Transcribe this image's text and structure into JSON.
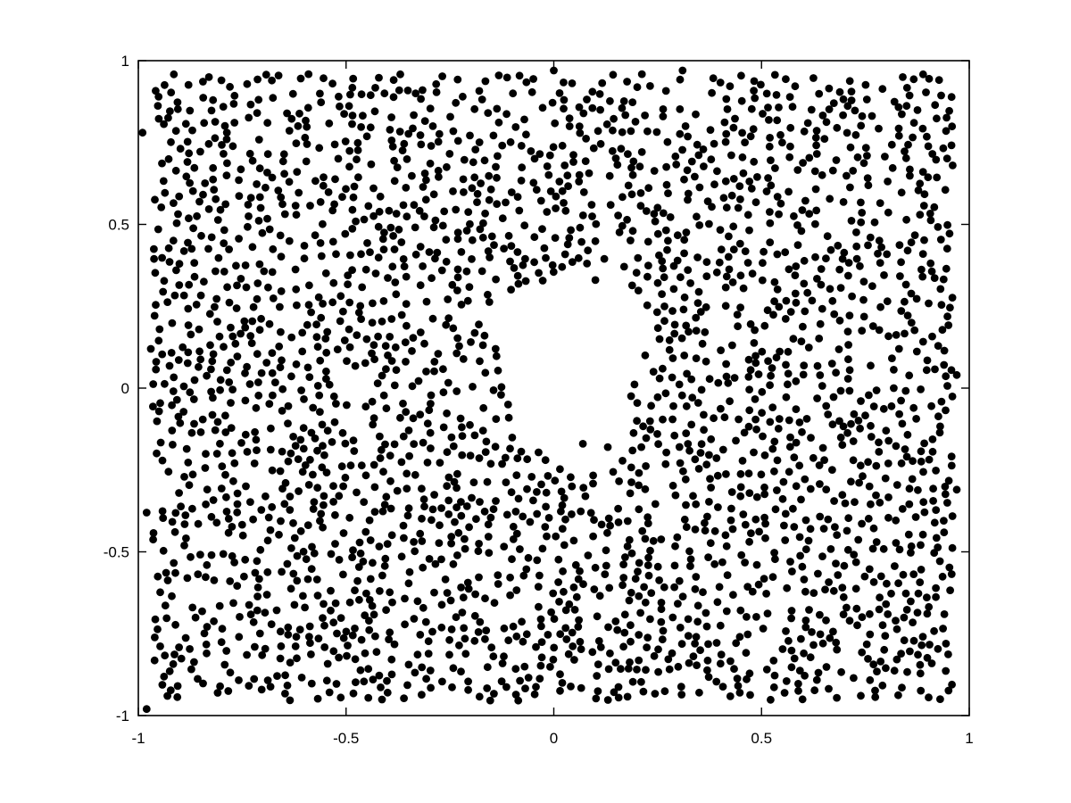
{
  "chart_data": {
    "type": "scatter",
    "title": "",
    "xlabel": "",
    "ylabel": "",
    "xlim": [
      -1,
      1
    ],
    "ylim": [
      -1,
      1
    ],
    "xticks": [
      -1,
      -0.5,
      0,
      0.5,
      1
    ],
    "yticks": [
      -1,
      -0.5,
      0,
      0.5,
      1
    ],
    "xtick_labels": [
      "-1",
      "-0.5",
      "0",
      "0.5",
      "1"
    ],
    "ytick_labels": [
      "-1",
      "-0.5",
      "0",
      "0.5",
      "1"
    ],
    "grid": false,
    "legend": "none",
    "marker": "filled-circle",
    "color": "#000000",
    "point_count": 2600,
    "empty_region": {
      "shape": "irregular blob",
      "x_range": [
        -0.15,
        0.23
      ],
      "y_range": [
        -0.22,
        0.4
      ]
    },
    "series": [
      {
        "points": [
          [
            -0.98,
            -0.98
          ],
          [
            -0.83,
            0.95
          ],
          [
            -0.8,
            0.94
          ],
          [
            0.0,
            0.97
          ],
          [
            0.31,
            0.97
          ],
          [
            0.84,
            0.95
          ],
          [
            -0.99,
            0.78
          ],
          [
            0.96,
            0.68
          ],
          [
            -0.97,
            0.12
          ],
          [
            0.97,
            0.04
          ],
          [
            -0.98,
            -0.38
          ],
          [
            0.97,
            -0.31
          ],
          [
            -0.93,
            -0.94
          ],
          [
            0.93,
            -0.95
          ],
          [
            -0.4,
            -0.93
          ],
          [
            0.35,
            -0.93
          ],
          [
            -0.14,
            0.12
          ],
          [
            -0.11,
            -0.05
          ],
          [
            0.02,
            0.37
          ],
          [
            0.1,
            0.33
          ],
          [
            0.22,
            0.1
          ],
          [
            0.24,
            0.05
          ],
          [
            0.2,
            -0.1
          ],
          [
            0.07,
            -0.17
          ],
          [
            0.13,
            -0.18
          ],
          [
            -0.02,
            -0.22
          ]
        ]
      }
    ]
  }
}
